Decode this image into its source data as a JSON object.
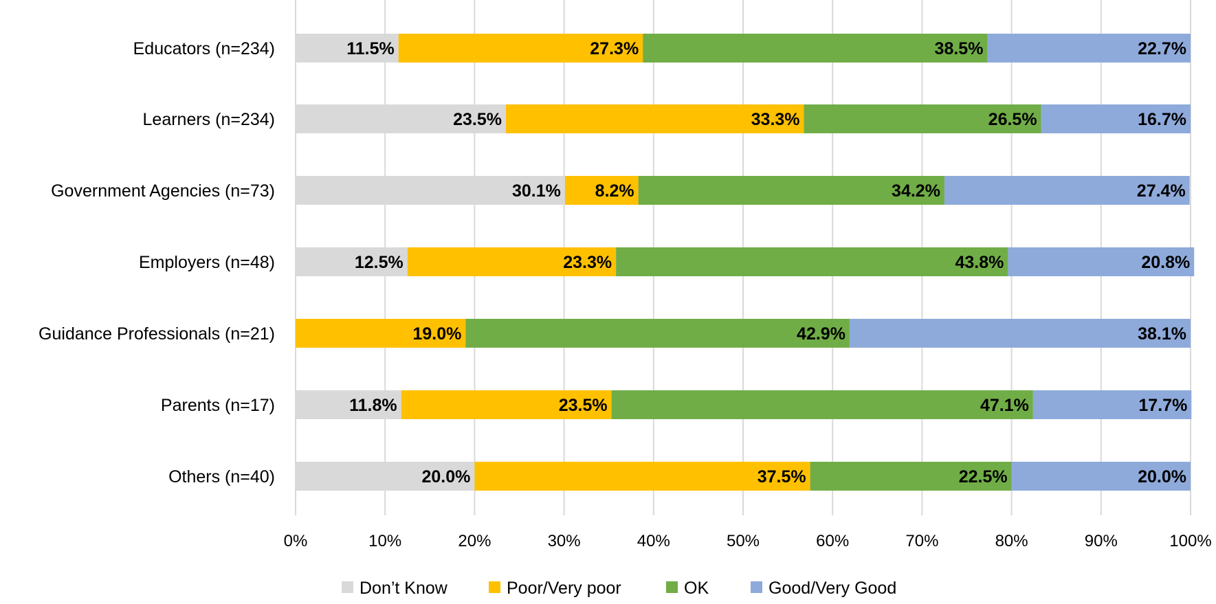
{
  "chart_data": {
    "type": "bar",
    "orientation": "horizontal",
    "stacked": true,
    "categories": [
      "Educators (n=234)",
      "Learners (n=234)",
      "Government Agencies (n=73)",
      "Employers (n=48)",
      "Guidance Professionals (n=21)",
      "Parents (n=17)",
      "Others (n=40)"
    ],
    "series": [
      {
        "name": "Don’t Know",
        "color": "#d9d9d9",
        "values": [
          11.5,
          23.5,
          30.1,
          12.5,
          0,
          11.8,
          20.0
        ],
        "labels": [
          "11.5%",
          "23.5%",
          "30.1%",
          "12.5%",
          "",
          "11.8%",
          "20.0%"
        ]
      },
      {
        "name": "Poor/Very poor",
        "color": "#ffc000",
        "values": [
          27.3,
          33.3,
          8.2,
          23.3,
          19.0,
          23.5,
          37.5
        ],
        "labels": [
          "27.3%",
          "33.3%",
          "8.2%",
          "23.3%",
          "19.0%",
          "23.5%",
          "37.5%"
        ]
      },
      {
        "name": "OK",
        "color": "#70ad47",
        "values": [
          38.5,
          26.5,
          34.2,
          43.8,
          42.9,
          47.1,
          22.5
        ],
        "labels": [
          "38.5%",
          "26.5%",
          "34.2%",
          "43.8%",
          "42.9%",
          "47.1%",
          "22.5%"
        ]
      },
      {
        "name": "Good/Very Good",
        "color": "#8eaadb",
        "values": [
          22.7,
          16.7,
          27.4,
          20.8,
          38.1,
          17.7,
          20.0
        ],
        "labels": [
          "22.7%",
          "16.7%",
          "27.4%",
          "20.8%",
          "38.1%",
          "17.7%",
          "20.0%"
        ]
      }
    ],
    "xlim": [
      0,
      100
    ],
    "x_ticks": [
      "0%",
      "10%",
      "20%",
      "30%",
      "40%",
      "50%",
      "60%",
      "70%",
      "80%",
      "90%",
      "100%"
    ],
    "grid": true,
    "gridline_color": "#d9d9d9",
    "legend_position": "bottom",
    "title": "",
    "xlabel": "",
    "ylabel": ""
  }
}
